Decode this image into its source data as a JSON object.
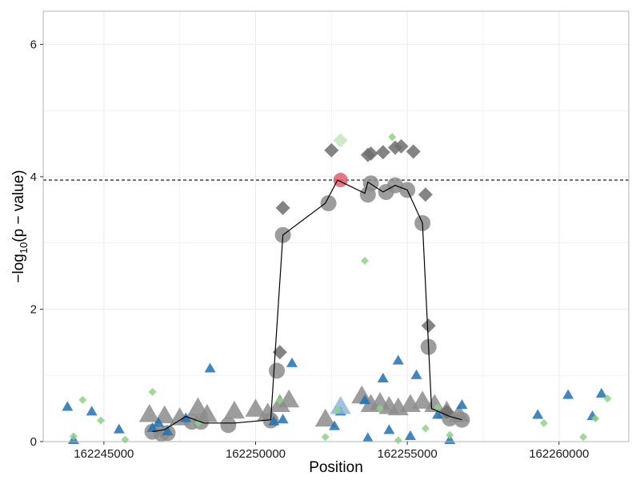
{
  "chart_data": {
    "type": "scatter",
    "title": "",
    "xlabel": "Position",
    "ylabel_prefix": "−log",
    "ylabel_sub": "10",
    "ylabel_suffix": "(p − value)",
    "xlim": [
      162243000,
      162262300
    ],
    "ylim": [
      0,
      6.5
    ],
    "x_ticks": [
      162245000,
      162250000,
      162255000,
      162260000
    ],
    "x_tick_labels": [
      "162245000",
      "162250000",
      "162255000",
      "162260000"
    ],
    "y_ticks": [
      0,
      2,
      4,
      6
    ],
    "y_tick_labels": [
      "0",
      "2",
      "4",
      "6"
    ],
    "threshold": 3.95,
    "grid": true,
    "colors": {
      "grey": "#8c8c8c",
      "dark_grey": "#6f6f6f",
      "blue": "#2171b5",
      "light_blue": "#8fb8de",
      "green": "#8fd18a",
      "light_green": "#c7e9c0",
      "red": "#e0606e",
      "line": "#000000",
      "grid": "#ebebeb",
      "panel_border": "#b3b3b3"
    },
    "line": {
      "x": [
        162246600,
        162247000,
        162247700,
        162248300,
        162249300,
        162250500,
        162250900,
        162252300,
        162252700,
        162253600,
        162253700,
        162254200,
        162254600,
        162255000,
        162255500,
        162255800,
        162256400,
        162256800
      ],
      "y": [
        0.15,
        0.18,
        0.38,
        0.28,
        0.28,
        0.33,
        3.12,
        3.6,
        3.95,
        3.75,
        3.92,
        3.77,
        3.87,
        3.8,
        3.3,
        0.5,
        0.38,
        0.33
      ]
    },
    "series": [
      {
        "name": "grey circles",
        "shape": "circle",
        "size": 10,
        "color": "#8c8c8c",
        "x": [
          162246600,
          162246900,
          162247100,
          162247900,
          162248200,
          162249100,
          162250500,
          162250700,
          162250900,
          162252400,
          162253700,
          162253800,
          162254300,
          162254600,
          162255000,
          162255500,
          162255700,
          162256400,
          162256800
        ],
        "y": [
          0.15,
          0.12,
          0.13,
          0.3,
          0.3,
          0.25,
          0.32,
          1.07,
          3.12,
          3.6,
          3.73,
          3.9,
          3.77,
          3.87,
          3.8,
          3.3,
          1.43,
          0.35,
          0.33
        ]
      },
      {
        "name": "grey large triangles",
        "shape": "triangle",
        "size": 13,
        "color": "#8c8c8c",
        "x": [
          162246500,
          162247000,
          162247500,
          162248100,
          162248400,
          162249300,
          162250000,
          162250400,
          162250800,
          162251100,
          162252300,
          162253500,
          162253800,
          162254100,
          162254400,
          162254700,
          162255100,
          162255500,
          162255900,
          162256300,
          162256700
        ],
        "y": [
          0.4,
          0.38,
          0.35,
          0.5,
          0.4,
          0.45,
          0.48,
          0.42,
          0.55,
          0.62,
          0.33,
          0.68,
          0.55,
          0.58,
          0.52,
          0.5,
          0.55,
          0.6,
          0.55,
          0.45,
          0.4
        ]
      },
      {
        "name": "grey diamonds",
        "shape": "diamond",
        "size": 9,
        "color": "#6f6f6f",
        "x": [
          162250900,
          162250800,
          162252500,
          162253700,
          162253800,
          162254200,
          162254600,
          162254800,
          162255200,
          162255600,
          162255700,
          162256300
        ],
        "y": [
          3.53,
          1.35,
          4.4,
          4.33,
          4.35,
          4.37,
          4.44,
          4.46,
          4.38,
          3.73,
          1.75,
          0.45
        ]
      },
      {
        "name": "blue triangles",
        "shape": "triangle",
        "size": 7,
        "color": "#2171b5",
        "x": [
          162243800,
          162244000,
          162244600,
          162245500,
          162246600,
          162246800,
          162247100,
          162247700,
          162248500,
          162250600,
          162250900,
          162251200,
          162252600,
          162252800,
          162253600,
          162253700,
          162254200,
          162254400,
          162254700,
          162255100,
          162255300,
          162256000,
          162256400,
          162256800,
          162259300,
          162260300,
          162261100,
          162261400
        ],
        "y": [
          0.52,
          0.02,
          0.45,
          0.18,
          0.2,
          0.28,
          0.15,
          0.35,
          1.1,
          0.3,
          0.33,
          1.18,
          0.23,
          0.45,
          0.62,
          0.05,
          0.95,
          0.17,
          1.22,
          0.08,
          1.0,
          0.4,
          0.02,
          0.55,
          0.4,
          0.7,
          0.38,
          0.72
        ]
      },
      {
        "name": "light blue triangle",
        "shape": "triangle",
        "size": 13,
        "color": "#8fb8de",
        "x": [
          162252800
        ],
        "y": [
          0.52
        ]
      },
      {
        "name": "green diamonds",
        "shape": "diamond",
        "size": 5,
        "color": "#8fd18a",
        "x": [
          162244300,
          162244000,
          162244900,
          162245700,
          162246600,
          162248100,
          162250800,
          162252300,
          162252700,
          162253600,
          162254100,
          162254500,
          162254700,
          162255600,
          162256000,
          162256400,
          162259500,
          162260800,
          162261200,
          162261600
        ],
        "y": [
          0.63,
          0.08,
          0.32,
          0.03,
          0.75,
          0.28,
          0.62,
          0.07,
          0.48,
          2.73,
          0.5,
          4.6,
          0.02,
          0.2,
          0.52,
          0.1,
          0.28,
          0.07,
          0.35,
          0.65
        ]
      },
      {
        "name": "light green diamond",
        "shape": "diamond",
        "size": 9,
        "color": "#c7e9c0",
        "x": [
          162252800
        ],
        "y": [
          4.55
        ]
      },
      {
        "name": "index SNP",
        "shape": "circle",
        "size": 9,
        "color": "#e0606e",
        "x": [
          162252800
        ],
        "y": [
          3.95
        ]
      }
    ]
  }
}
